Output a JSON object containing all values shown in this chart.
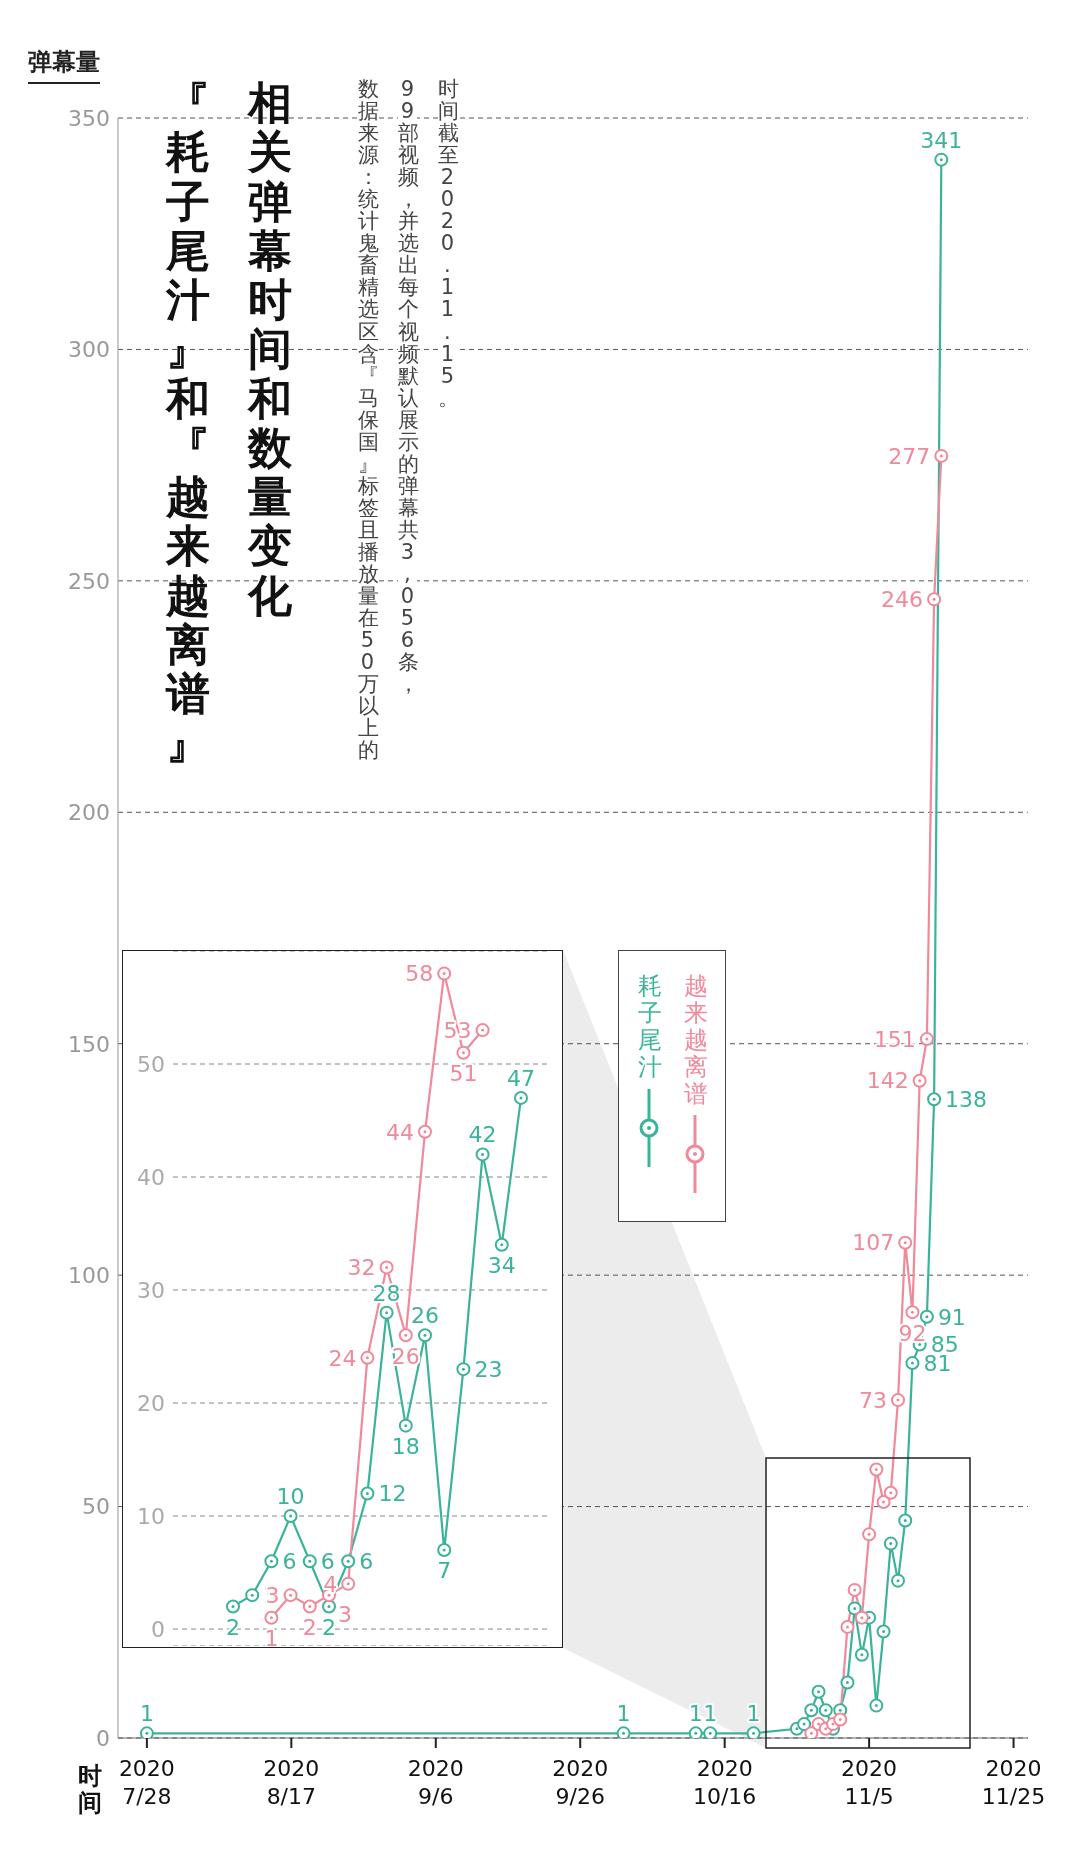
{
  "chart_data": [
    {
      "type": "line",
      "title": "『耗子尾汁』和『越来越离谱』",
      "subtitle": "相关弹幕时间和数量变化",
      "xlabel": "时间",
      "ylabel": "弹幕量",
      "annotations": [
        "数据来源：统计鬼畜精选区含『马保国』标签且播放量在50万以上的",
        "99部视频，并选出每个视频默认展示的弹幕共3,056条，",
        "时间截至2020.11.15。"
      ],
      "series": [
        {
          "name": "耗子尾汁",
          "color": "#3bb39a",
          "x": [
            "2020-07-28",
            "2020-10-02",
            "2020-10-12",
            "2020-10-14",
            "2020-10-20",
            "2020-10-26",
            "2020-10-27",
            "2020-10-28",
            "2020-10-29",
            "2020-10-30",
            "2020-10-31",
            "2020-11-01",
            "2020-11-02",
            "2020-11-03",
            "2020-11-04",
            "2020-11-05",
            "2020-11-06",
            "2020-11-07",
            "2020-11-08",
            "2020-11-09",
            "2020-11-10",
            "2020-11-11",
            "2020-11-12",
            "2020-11-13",
            "2020-11-14",
            "2020-11-15"
          ],
          "values": [
            1,
            1,
            1,
            1,
            1,
            2,
            3,
            6,
            10,
            6,
            2,
            6,
            12,
            28,
            18,
            26,
            7,
            23,
            42,
            34,
            47,
            81,
            85,
            91,
            138,
            341
          ],
          "value_labels": [
            "1",
            "1",
            "1",
            "1",
            "1",
            null,
            null,
            null,
            null,
            null,
            null,
            null,
            null,
            null,
            null,
            null,
            null,
            null,
            null,
            null,
            null,
            "81",
            "85",
            "91",
            "138",
            "341"
          ]
        },
        {
          "name": "越来越离谱",
          "color": "#f0899a",
          "x": [
            "2020-10-28",
            "2020-10-29",
            "2020-10-30",
            "2020-10-31",
            "2020-11-01",
            "2020-11-02",
            "2020-11-03",
            "2020-11-04",
            "2020-11-05",
            "2020-11-06",
            "2020-11-07",
            "2020-11-08",
            "2020-11-09",
            "2020-11-10",
            "2020-11-11",
            "2020-11-12",
            "2020-11-13",
            "2020-11-14",
            "2020-11-15"
          ],
          "values": [
            1,
            3,
            2,
            3,
            4,
            24,
            32,
            26,
            44,
            58,
            51,
            53,
            73,
            107,
            92,
            142,
            151,
            246,
            277
          ],
          "value_labels": [
            null,
            null,
            null,
            null,
            null,
            null,
            null,
            null,
            null,
            null,
            null,
            null,
            "73",
            "107",
            "92",
            "142",
            "151",
            "246",
            "277"
          ]
        }
      ],
      "xlim": [
        "2020-07-24",
        "2020-11-27"
      ],
      "xticks": [
        {
          "value": "2020-07-28",
          "label": "2020 7/28"
        },
        {
          "value": "2020-08-17",
          "label": "2020 8/17"
        },
        {
          "value": "2020-09-06",
          "label": "2020 9/6"
        },
        {
          "value": "2020-09-26",
          "label": "2020 9/26"
        },
        {
          "value": "2020-10-16",
          "label": "2020 10/16"
        },
        {
          "value": "2020-11-05",
          "label": "2020 11/5"
        },
        {
          "value": "2020-11-25",
          "label": "2020 11/25"
        }
      ],
      "ylim": [
        0,
        350
      ],
      "yticks": [
        0,
        50,
        100,
        150,
        200,
        250,
        300,
        350
      ],
      "grid": "y",
      "legend": "center",
      "marker": "circle",
      "line_style": "solid"
    },
    {
      "type": "line",
      "categories": [
        null,
        null,
        null,
        null,
        null,
        null,
        null,
        null,
        null,
        null,
        null,
        null,
        null,
        null,
        null,
        null
      ],
      "series": [
        {
          "color": "#3bb39a",
          "values": [
            2,
            3,
            6,
            10,
            6,
            2,
            6,
            12,
            28,
            18,
            26,
            7,
            23,
            42,
            34,
            47
          ]
        },
        {
          "color": "#f0899a",
          "values": [
            null,
            null,
            1,
            3,
            2,
            3,
            4,
            24,
            32,
            26,
            44,
            58,
            51,
            53,
            null,
            null
          ]
        }
      ],
      "ylim": [
        -1.5,
        60
      ],
      "yticks": [
        0,
        10,
        20,
        30,
        40,
        50
      ],
      "grid": "y",
      "tick_labels": "y",
      "data_labels": true,
      "marker": "circle",
      "line_style": "solid"
    }
  ]
}
